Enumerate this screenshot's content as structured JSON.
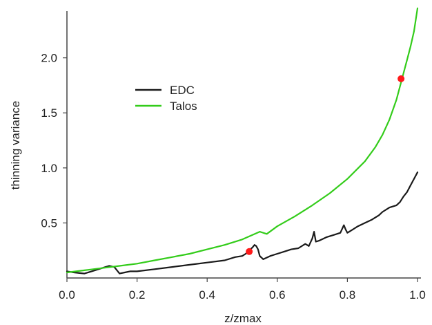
{
  "chart_data": {
    "type": "line",
    "xlabel": "z/zmax",
    "ylabel": "thinning variance",
    "xlim": [
      0.0,
      1.0
    ],
    "ylim": [
      0.0,
      2.45
    ],
    "x_ticks": [
      "0.0",
      "0.2",
      "0.4",
      "0.6",
      "0.8",
      "1.0"
    ],
    "y_ticks": [
      "0.5",
      "1.0",
      "1.5",
      "2.0"
    ],
    "grid": false,
    "legend_position": "upper-left",
    "series": [
      {
        "name": "EDC",
        "color": "#1a1a1a",
        "x": [
          0.0,
          0.02,
          0.05,
          0.08,
          0.1,
          0.12,
          0.135,
          0.15,
          0.165,
          0.18,
          0.2,
          0.25,
          0.3,
          0.35,
          0.4,
          0.45,
          0.48,
          0.5,
          0.51,
          0.52,
          0.53,
          0.535,
          0.54,
          0.545,
          0.55,
          0.56,
          0.58,
          0.6,
          0.62,
          0.64,
          0.66,
          0.68,
          0.69,
          0.7,
          0.705,
          0.71,
          0.72,
          0.74,
          0.76,
          0.78,
          0.79,
          0.795,
          0.8,
          0.81,
          0.83,
          0.85,
          0.87,
          0.89,
          0.9,
          0.92,
          0.94,
          0.95,
          0.96,
          0.97,
          0.98,
          1.0
        ],
        "y": [
          0.06,
          0.05,
          0.04,
          0.07,
          0.09,
          0.11,
          0.1,
          0.04,
          0.05,
          0.06,
          0.06,
          0.08,
          0.1,
          0.12,
          0.14,
          0.16,
          0.19,
          0.2,
          0.22,
          0.25,
          0.28,
          0.3,
          0.29,
          0.26,
          0.2,
          0.17,
          0.2,
          0.22,
          0.24,
          0.26,
          0.27,
          0.31,
          0.29,
          0.36,
          0.42,
          0.33,
          0.34,
          0.37,
          0.39,
          0.41,
          0.48,
          0.44,
          0.41,
          0.43,
          0.47,
          0.5,
          0.53,
          0.57,
          0.6,
          0.64,
          0.66,
          0.69,
          0.74,
          0.78,
          0.84,
          0.96
        ]
      },
      {
        "name": "Talos",
        "color": "#33cc1a",
        "x": [
          0.0,
          0.05,
          0.1,
          0.15,
          0.2,
          0.25,
          0.3,
          0.35,
          0.4,
          0.45,
          0.5,
          0.55,
          0.57,
          0.6,
          0.65,
          0.7,
          0.75,
          0.8,
          0.85,
          0.88,
          0.9,
          0.92,
          0.94,
          0.95,
          0.96,
          0.97,
          0.98,
          0.99,
          1.0
        ],
        "y": [
          0.05,
          0.07,
          0.09,
          0.11,
          0.13,
          0.16,
          0.19,
          0.22,
          0.26,
          0.3,
          0.35,
          0.42,
          0.4,
          0.47,
          0.56,
          0.66,
          0.77,
          0.9,
          1.06,
          1.19,
          1.3,
          1.44,
          1.62,
          1.74,
          1.86,
          1.98,
          2.1,
          2.24,
          2.45
        ]
      }
    ],
    "markers": [
      {
        "x": 0.52,
        "y": 0.24,
        "color": "#ff1a1a"
      },
      {
        "x": 0.953,
        "y": 1.81,
        "color": "#ff1a1a"
      }
    ]
  }
}
